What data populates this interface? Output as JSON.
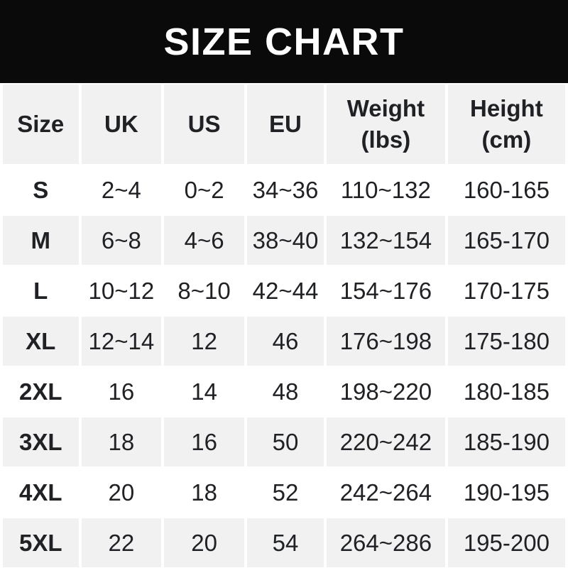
{
  "banner": {
    "bg_color": "#0a0a0a",
    "text_color": "#ffffff"
  },
  "colors": {
    "stripe": "#f1f1f2",
    "row_alt": "#ffffff",
    "table_text": "#202124"
  },
  "chart_data": {
    "type": "table",
    "title": "SIZE CHART",
    "columns": [
      {
        "label": "Size"
      },
      {
        "label": "UK"
      },
      {
        "label": "US"
      },
      {
        "label": "EU"
      },
      {
        "label": "Weight",
        "sub": "(lbs)"
      },
      {
        "label": "Height",
        "sub": "(cm)"
      }
    ],
    "rows": [
      [
        "S",
        "2~4",
        "0~2",
        "34~36",
        "110~132",
        "160-165"
      ],
      [
        "M",
        "6~8",
        "4~6",
        "38~40",
        "132~154",
        "165-170"
      ],
      [
        "L",
        "10~12",
        "8~10",
        "42~44",
        "154~176",
        "170-175"
      ],
      [
        "XL",
        "12~14",
        "12",
        "46",
        "176~198",
        "175-180"
      ],
      [
        "2XL",
        "16",
        "14",
        "48",
        "198~220",
        "180-185"
      ],
      [
        "3XL",
        "18",
        "16",
        "50",
        "220~242",
        "185-190"
      ],
      [
        "4XL",
        "20",
        "18",
        "52",
        "242~264",
        "190-195"
      ],
      [
        "5XL",
        "22",
        "20",
        "54",
        "264~286",
        "195-200"
      ]
    ]
  }
}
